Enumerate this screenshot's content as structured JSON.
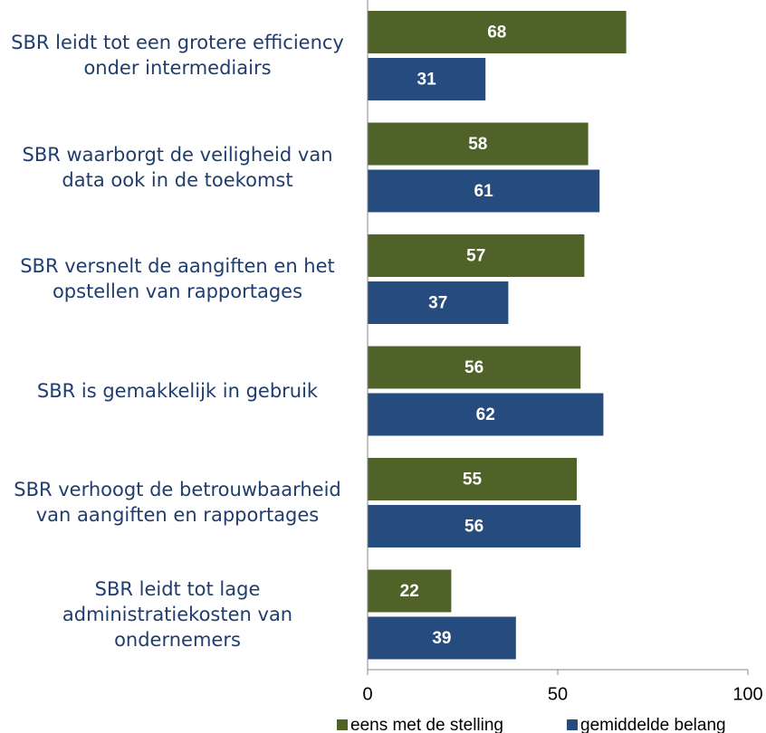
{
  "chart_data": {
    "type": "barh",
    "categories": [
      "SBR leidt tot een grotere efficiency onder intermediairs",
      "SBR waarborgt de veiligheid van data ook in de toekomst",
      "SBR versnelt de aangiften en het opstellen van rapportages",
      "SBR is gemakkelijk in gebruik",
      "SBR verhoogt de betrouwbaarheid van aangiften en rapportages",
      "SBR leidt tot lage administratiekosten van ondernemers"
    ],
    "series": [
      {
        "name": "eens met de stelling",
        "color": "#4f6228",
        "values": [
          68,
          58,
          57,
          56,
          55,
          22
        ]
      },
      {
        "name": "gemiddelde belang",
        "color": "#254b7f",
        "values": [
          31,
          61,
          37,
          62,
          56,
          39
        ]
      }
    ],
    "xlim": [
      0,
      100
    ],
    "xticks": [
      0,
      50,
      100
    ],
    "legend": "bottom"
  }
}
